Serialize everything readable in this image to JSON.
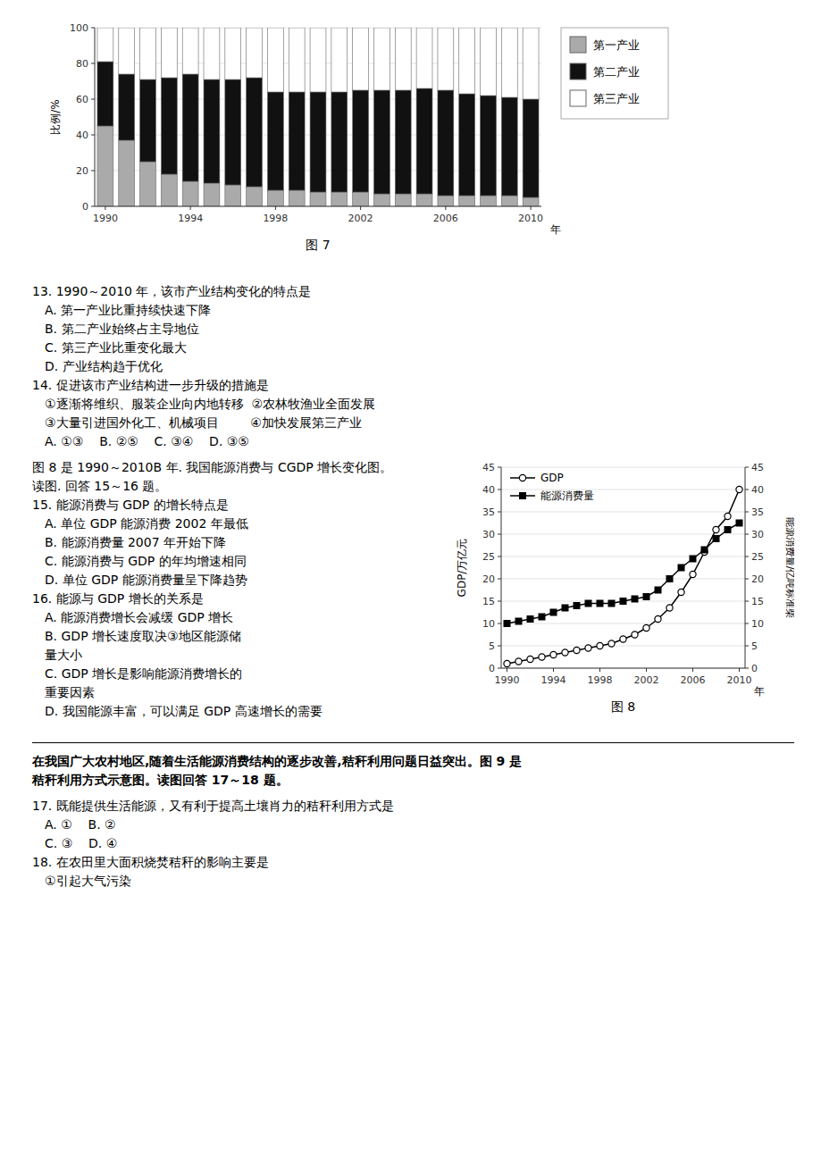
{
  "chart_data": [
    {
      "type": "bar",
      "stacked": true,
      "title": "图 7",
      "x_label": "年",
      "y_label": "比例/%",
      "categories": [
        "1990",
        null,
        null,
        null,
        "1994",
        null,
        null,
        null,
        "1998",
        null,
        null,
        null,
        "2002",
        null,
        null,
        null,
        "2006",
        null,
        null,
        null,
        "2010"
      ],
      "series": [
        {
          "name": "第一产业",
          "color": "#aaaaaa",
          "values": [
            45,
            37,
            25,
            18,
            14,
            13,
            12,
            11,
            9,
            9,
            8,
            8,
            8,
            7,
            7,
            7,
            6,
            6,
            6,
            6,
            5
          ]
        },
        {
          "name": "第二产业",
          "color": "#111111",
          "values": [
            36,
            37,
            46,
            54,
            60,
            58,
            59,
            61,
            55,
            55,
            56,
            56,
            57,
            58,
            58,
            59,
            59,
            57,
            56,
            55,
            55
          ]
        },
        {
          "name": "第三产业",
          "color": "#ffffff",
          "values": [
            19,
            26,
            29,
            28,
            26,
            29,
            29,
            28,
            36,
            36,
            36,
            36,
            35,
            35,
            35,
            34,
            35,
            37,
            38,
            39,
            40
          ]
        }
      ],
      "ylim": [
        0,
        100
      ],
      "yticks": [
        0,
        20,
        40,
        60,
        80,
        100
      ],
      "grid": true,
      "legend": "right"
    },
    {
      "type": "line",
      "title": "图 8",
      "x_label": "年",
      "y_label": "GDP/万亿元",
      "y2_label": "能源消费量/亿吨标准柴",
      "categories": [
        "1990",
        null,
        null,
        null,
        "1994",
        null,
        null,
        null,
        "1998",
        null,
        null,
        null,
        "2002",
        null,
        null,
        null,
        "2006",
        null,
        null,
        null,
        "2010"
      ],
      "series": [
        {
          "name": "GDP",
          "color": "#000000",
          "marker": "circle",
          "values": [
            1.0,
            1.5,
            2.0,
            2.5,
            3.0,
            3.5,
            4.0,
            4.5,
            5.0,
            5.5,
            6.5,
            7.5,
            9.0,
            11.0,
            13.5,
            17.0,
            21.0,
            26.0,
            31.0,
            34.0,
            40.0
          ]
        },
        {
          "name": "能源消费量",
          "color": "#000000",
          "marker": "square",
          "axis": "y2",
          "values": [
            10.0,
            10.5,
            11.0,
            11.5,
            12.5,
            13.5,
            14.0,
            14.5,
            14.5,
            14.5,
            15.0,
            15.5,
            16.0,
            17.5,
            20.0,
            22.5,
            24.5,
            26.5,
            29.0,
            31.0,
            32.5
          ]
        }
      ],
      "ylim": [
        0,
        45
      ],
      "yticks": [
        0,
        5,
        10,
        15,
        20,
        25,
        30,
        35,
        40,
        45
      ],
      "y2lim": [
        0,
        45
      ],
      "y2ticks": [
        0,
        5,
        10,
        15,
        20,
        25,
        30,
        35,
        40,
        45
      ],
      "grid": true,
      "legend": "upper-left"
    }
  ],
  "page_text": {
    "section1": [
      "13. 1990～2010 年，该市产业结构变化的特点是",
      "A. 第一产业比重持续快速下降",
      "B. 第二产业始终占主导地位",
      "C. 第三产业比重变化最大",
      "D. 产业结构趋于优化",
      "14. 促进该市产业结构进一步升级的措施是",
      "①逐渐将维织、服装企业向内地转移  ②农林牧渔业全面发展",
      "③大量引进国外化工、机械项目        ④加快发展第三产业",
      "A. ①③    B. ②⑤    C. ③④    D. ③⑤"
    ],
    "section2": [
      "图 8 是 1990～2010B 年. 我国能源消费与 CGDP 增长变化图。",
      "读图. 回答 15～16 题。",
      "15. 能源消费与 GDP 的增长特点是",
      "A. 单位 GDP 能源消费 2002 年最低",
      "B. 能源消费量 2007 年开始下降",
      "C. 能源消费与 GDP 的年均增速相同",
      "D. 单位 GDP 能源消费量呈下降趋势",
      "16. 能源与 GDP 增长的关系是",
      "A. 能源消费增长会减缓 GDP 增长",
      "B. GDP 增长速度取决③地区能源储",
      "量大小",
      "C. GDP 增长是影响能源消费增长的",
      "重要因素",
      "D. 我国能源丰富，可以满足 GDP 高速增长的需要"
    ],
    "bold": [
      "在我国广大农村地区,随着生活能源消费结构的逐步改善,秸秆利用问题日益突出。图 9 是",
      "秸秆利用方式示意图。读图回答 17～18 题。"
    ],
    "section3": [
      "17. 既能提供生活能源，又有利于提高土壤肖力的秸秆利用方式是",
      "A. ①    B. ②",
      "C. ③    D. ④",
      "18. 在农田里大面积烧焚秸秆的影响主要是",
      "①引起大气污染"
    ]
  }
}
